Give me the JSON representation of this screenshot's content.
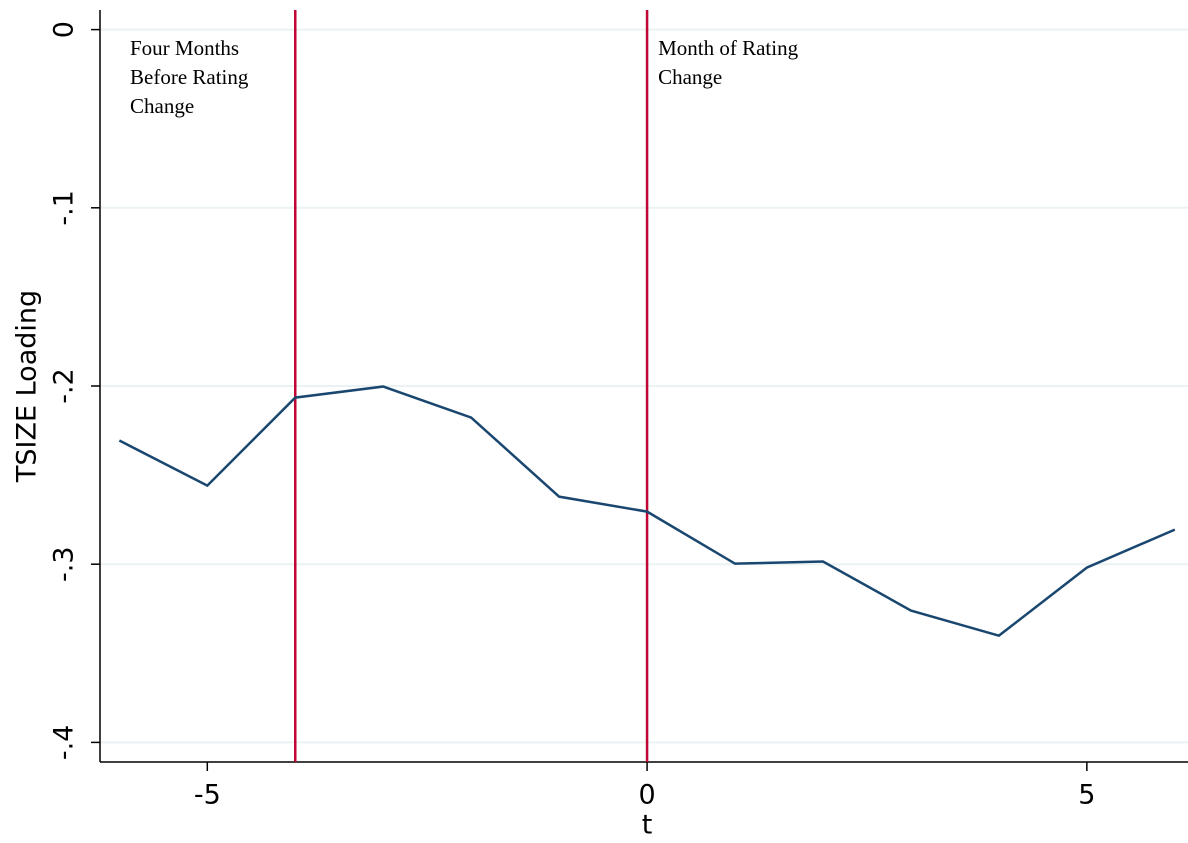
{
  "chart_data": {
    "type": "line",
    "xlabel": "t",
    "ylabel": "TSIZE Loading",
    "x": [
      -6,
      -5,
      -4,
      -3,
      -2,
      -1,
      0,
      1,
      2,
      3,
      4,
      5,
      6
    ],
    "series": [
      {
        "color": "#1a476f",
        "values": [
          -0.2306,
          -0.2559,
          -0.2065,
          -0.2003,
          -0.2177,
          -0.2621,
          -0.2705,
          -0.2997,
          -0.2985,
          -0.326,
          -0.3401,
          -0.3019,
          -0.2806
        ]
      }
    ],
    "xlim": [
      -6.22,
      6.15
    ],
    "ylim": [
      -0.411,
      0.011
    ],
    "xticks": [
      -5,
      0,
      5
    ],
    "yticks": [
      0,
      {
        "value": -0.1,
        "label": "-.1"
      },
      {
        "value": -0.2,
        "label": "-.2"
      },
      {
        "value": -0.3,
        "label": "-.3"
      },
      {
        "value": -0.4,
        "label": "-.4"
      }
    ],
    "grid": true,
    "vlines": [
      {
        "x": -4,
        "color": "#c10534",
        "annotation": [
          "Four Months",
          "Before Rating",
          "Change"
        ]
      },
      {
        "x": 0,
        "color": "#c10534",
        "annotation": [
          "Month of Rating",
          "Change"
        ]
      }
    ]
  }
}
